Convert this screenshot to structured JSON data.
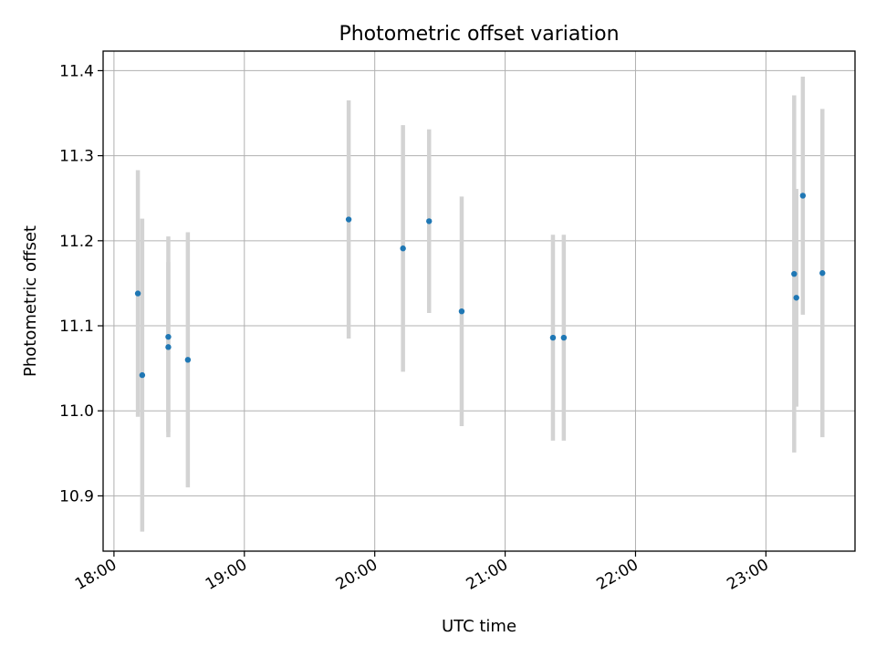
{
  "chart_data": {
    "type": "scatter",
    "title": "Photometric offset variation",
    "xlabel": "UTC time",
    "ylabel": "Photometric offset",
    "x_axis_kind": "time",
    "xlim": [
      "17:55",
      "23:41"
    ],
    "ylim": [
      10.835,
      11.423
    ],
    "grid": true,
    "x_ticks": [
      "18:00",
      "19:00",
      "20:00",
      "21:00",
      "22:00",
      "23:00"
    ],
    "y_ticks": [
      "10.9",
      "11.0",
      "11.1",
      "11.2",
      "11.3",
      "11.4"
    ],
    "point_color": "#1f77b4",
    "errorbar_color": "#d3d3d3",
    "points": [
      {
        "t": "18:11",
        "y": 11.138,
        "err": 0.145
      },
      {
        "t": "18:13",
        "y": 11.042,
        "err": 0.184
      },
      {
        "t": "18:25",
        "y": 11.087,
        "err": 0.118
      },
      {
        "t": "18:25",
        "y": 11.075,
        "err": 0.1
      },
      {
        "t": "18:34",
        "y": 11.06,
        "err": 0.15
      },
      {
        "t": "19:48",
        "y": 11.225,
        "err": 0.14
      },
      {
        "t": "20:13",
        "y": 11.191,
        "err": 0.145
      },
      {
        "t": "20:25",
        "y": 11.223,
        "err": 0.108
      },
      {
        "t": "20:40",
        "y": 11.117,
        "err": 0.135
      },
      {
        "t": "21:22",
        "y": 11.086,
        "err": 0.121
      },
      {
        "t": "21:27",
        "y": 11.086,
        "err": 0.121
      },
      {
        "t": "23:13",
        "y": 11.161,
        "err": 0.21
      },
      {
        "t": "23:14",
        "y": 11.133,
        "err": 0.128
      },
      {
        "t": "23:17",
        "y": 11.253,
        "err": 0.14
      },
      {
        "t": "23:26",
        "y": 11.162,
        "err": 0.193
      }
    ]
  }
}
